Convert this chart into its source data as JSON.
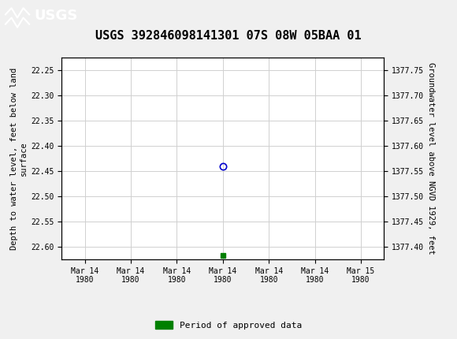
{
  "title": "USGS 392846098141301 07S 08W 05BAA 01",
  "ylabel_left": "Depth to water level, feet below land\nsurface",
  "ylabel_right": "Groundwater level above NGVD 1929, feet",
  "ylim_left": [
    22.625,
    22.225
  ],
  "ylim_right": [
    1377.375,
    1377.775
  ],
  "yticks_left": [
    22.25,
    22.3,
    22.35,
    22.4,
    22.45,
    22.5,
    22.55,
    22.6
  ],
  "yticks_right": [
    1377.75,
    1377.7,
    1377.65,
    1377.6,
    1377.55,
    1377.5,
    1377.45,
    1377.4
  ],
  "data_point_x": 3.0,
  "data_point_y": 22.44,
  "marker_x": 3.0,
  "marker_y": 22.617,
  "x_tick_labels": [
    "Mar 14\n1980",
    "Mar 14\n1980",
    "Mar 14\n1980",
    "Mar 14\n1980",
    "Mar 14\n1980",
    "Mar 14\n1980",
    "Mar 15\n1980"
  ],
  "x_tick_positions": [
    0,
    1,
    2,
    3,
    4,
    5,
    6
  ],
  "legend_label": "Period of approved data",
  "legend_color": "#008000",
  "circle_color": "#0000cc",
  "background_color": "#f0f0f0",
  "plot_bg_color": "#ffffff",
  "grid_color": "#d0d0d0",
  "header_color": "#006633",
  "title_fontsize": 11,
  "tick_fontsize": 7,
  "ylabel_fontsize": 7.5,
  "legend_fontsize": 8
}
